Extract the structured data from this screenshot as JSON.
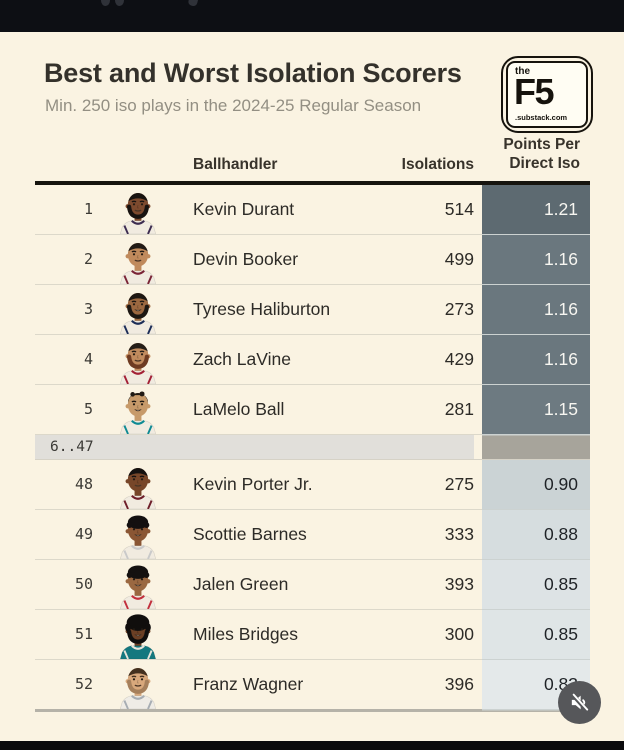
{
  "colors": {
    "background": "#faf3e2",
    "top_bar": "#0d0f14",
    "bottom_bar": "#0a0a0c",
    "header_rule": "#16140e",
    "table_bottom_rule": "#b5b2a8",
    "row_divider": "#dcd8ca",
    "gap_row_bg": "#e1dfda",
    "gap_row_cell_bg": "#a7a49b",
    "mute_button_bg": "#56575a"
  },
  "header": {
    "title": "Best and Worst Isolation Scorers",
    "subtitle": "Min. 250 iso plays in the 2024-25 Regular Season"
  },
  "logo": {
    "line1": "the",
    "line2": "F5",
    "line3": ".substack.com"
  },
  "table": {
    "columns": {
      "ballhandler": "Ballhandler",
      "isolations": "Isolations",
      "ppdi_line1": "Points Per",
      "ppdi_line2": "Direct Iso"
    },
    "rows_top": [
      {
        "rank": "1",
        "name": "Kevin Durant",
        "isolations": "514",
        "ppdi": "1.21",
        "cell_bg": "#5d6a71",
        "cell_text": "#f7f6f1",
        "avatar": {
          "skin": "#7d4a2e",
          "hair": "#181310",
          "style": "short",
          "beard": "#181310",
          "smile": false,
          "jersey": "#f1ebe0",
          "trim": "#3c2c50"
        }
      },
      {
        "rank": "2",
        "name": "Devin Booker",
        "isolations": "499",
        "ppdi": "1.16",
        "cell_bg": "#6a777e",
        "cell_text": "#f7f6f1",
        "avatar": {
          "skin": "#c08a5c",
          "hair": "#211a15",
          "style": "short",
          "beard": null,
          "smile": false,
          "jersey": "#f1ebe0",
          "trim": "#7a2436"
        }
      },
      {
        "rank": "3",
        "name": "Tyrese Haliburton",
        "isolations": "273",
        "ppdi": "1.16",
        "cell_bg": "#6a777e",
        "cell_text": "#f7f6f1",
        "avatar": {
          "skin": "#9c6840",
          "hair": "#1d1712",
          "style": "short",
          "beard": "#1d1712",
          "smile": true,
          "jersey": "#f1ebe0",
          "trim": "#1c2d57"
        }
      },
      {
        "rank": "4",
        "name": "Zach LaVine",
        "isolations": "429",
        "ppdi": "1.16",
        "cell_bg": "#6a777e",
        "cell_text": "#f7f6f1",
        "avatar": {
          "skin": "#c18b5e",
          "hair": "#241d17",
          "style": "short",
          "beard": "#6e3b22",
          "smile": false,
          "jersey": "#f1ebe0",
          "trim": "#a32035"
        }
      },
      {
        "rank": "5",
        "name": "LaMelo Ball",
        "isolations": "281",
        "ppdi": "1.15",
        "cell_bg": "#6d7a81",
        "cell_text": "#f7f6f1",
        "avatar": {
          "skin": "#c79a6a",
          "hair": "#1f1913",
          "style": "messy",
          "beard": null,
          "smile": true,
          "jersey": "#f1ebe0",
          "trim": "#0e8a93"
        }
      }
    ],
    "gap_row": {
      "label": "6..47"
    },
    "rows_bottom": [
      {
        "rank": "48",
        "name": "Kevin Porter Jr.",
        "isolations": "275",
        "ppdi": "0.90",
        "cell_bg": "#cbd3d5",
        "cell_text": "#1f2327",
        "avatar": {
          "skin": "#774629",
          "hair": "#141110",
          "style": "short",
          "beard": null,
          "smile": false,
          "jersey": "#f1ebe0",
          "trim": "#6e1f2a"
        }
      },
      {
        "rank": "49",
        "name": "Scottie Barnes",
        "isolations": "333",
        "ppdi": "0.88",
        "cell_bg": "#d6dddf",
        "cell_text": "#1f2327",
        "avatar": {
          "skin": "#8a5634",
          "hair": "#131010",
          "style": "curly",
          "beard": null,
          "smile": true,
          "jersey": "#f1ebe0",
          "trim": "#c9c9c9"
        }
      },
      {
        "rank": "50",
        "name": "Jalen Green",
        "isolations": "393",
        "ppdi": "0.85",
        "cell_bg": "#dde3e5",
        "cell_text": "#1f2327",
        "avatar": {
          "skin": "#9a6841",
          "hair": "#141110",
          "style": "curly",
          "beard": null,
          "smile": true,
          "jersey": "#f1ebe0",
          "trim": "#c2303d"
        }
      },
      {
        "rank": "51",
        "name": "Miles Bridges",
        "isolations": "300",
        "ppdi": "0.85",
        "cell_bg": "#dfe5e6",
        "cell_text": "#1f2327",
        "avatar": {
          "skin": "#6b3f24",
          "hair": "#100e0d",
          "style": "afro",
          "beard": "#100e0d",
          "smile": true,
          "jersey": "#14787f",
          "trim": "#e8e4da"
        }
      },
      {
        "rank": "52",
        "name": "Franz Wagner",
        "isolations": "396",
        "ppdi": "0.83",
        "cell_bg": "#e4e9ea",
        "cell_text": "#1f2327",
        "avatar": {
          "skin": "#d8a87c",
          "hair": "#43301f",
          "style": "short",
          "beard": "#a6805c",
          "smile": false,
          "jersey": "#efece6",
          "trim": "#a7adb3"
        }
      }
    ]
  },
  "mute_button": {
    "icon": "muted-speaker-icon"
  }
}
